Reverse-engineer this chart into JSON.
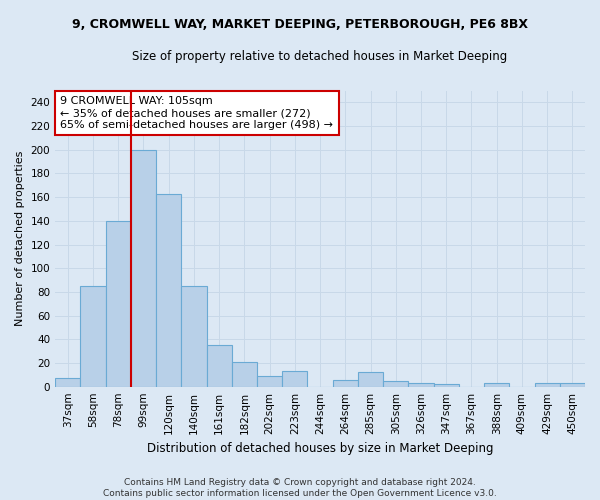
{
  "title_line1": "9, CROMWELL WAY, MARKET DEEPING, PETERBOROUGH, PE6 8BX",
  "title_line2": "Size of property relative to detached houses in Market Deeping",
  "xlabel": "Distribution of detached houses by size in Market Deeping",
  "ylabel": "Number of detached properties",
  "categories": [
    "37sqm",
    "58sqm",
    "78sqm",
    "99sqm",
    "120sqm",
    "140sqm",
    "161sqm",
    "182sqm",
    "202sqm",
    "223sqm",
    "244sqm",
    "264sqm",
    "285sqm",
    "305sqm",
    "326sqm",
    "347sqm",
    "367sqm",
    "388sqm",
    "409sqm",
    "429sqm",
    "450sqm"
  ],
  "values": [
    7,
    85,
    140,
    200,
    163,
    85,
    35,
    21,
    9,
    13,
    0,
    6,
    12,
    5,
    3,
    2,
    0,
    3,
    0,
    3,
    3
  ],
  "bar_color": "#b8d0e8",
  "bar_edge_color": "#6aaad4",
  "vline_x_index": 3,
  "vline_color": "#cc0000",
  "annotation_text": "9 CROMWELL WAY: 105sqm\n← 35% of detached houses are smaller (272)\n65% of semi-detached houses are larger (498) →",
  "annotation_box_color": "#ffffff",
  "annotation_box_edge": "#cc0000",
  "ylim": [
    0,
    250
  ],
  "yticks": [
    0,
    20,
    40,
    60,
    80,
    100,
    120,
    140,
    160,
    180,
    200,
    220,
    240
  ],
  "grid_color": "#c8d8e8",
  "bg_color": "#dce8f4",
  "footer": "Contains HM Land Registry data © Crown copyright and database right 2024.\nContains public sector information licensed under the Open Government Licence v3.0.",
  "title_fontsize": 9,
  "subtitle_fontsize": 8.5,
  "ylabel_fontsize": 8,
  "xlabel_fontsize": 8.5,
  "tick_fontsize": 7.5,
  "footer_fontsize": 6.5
}
